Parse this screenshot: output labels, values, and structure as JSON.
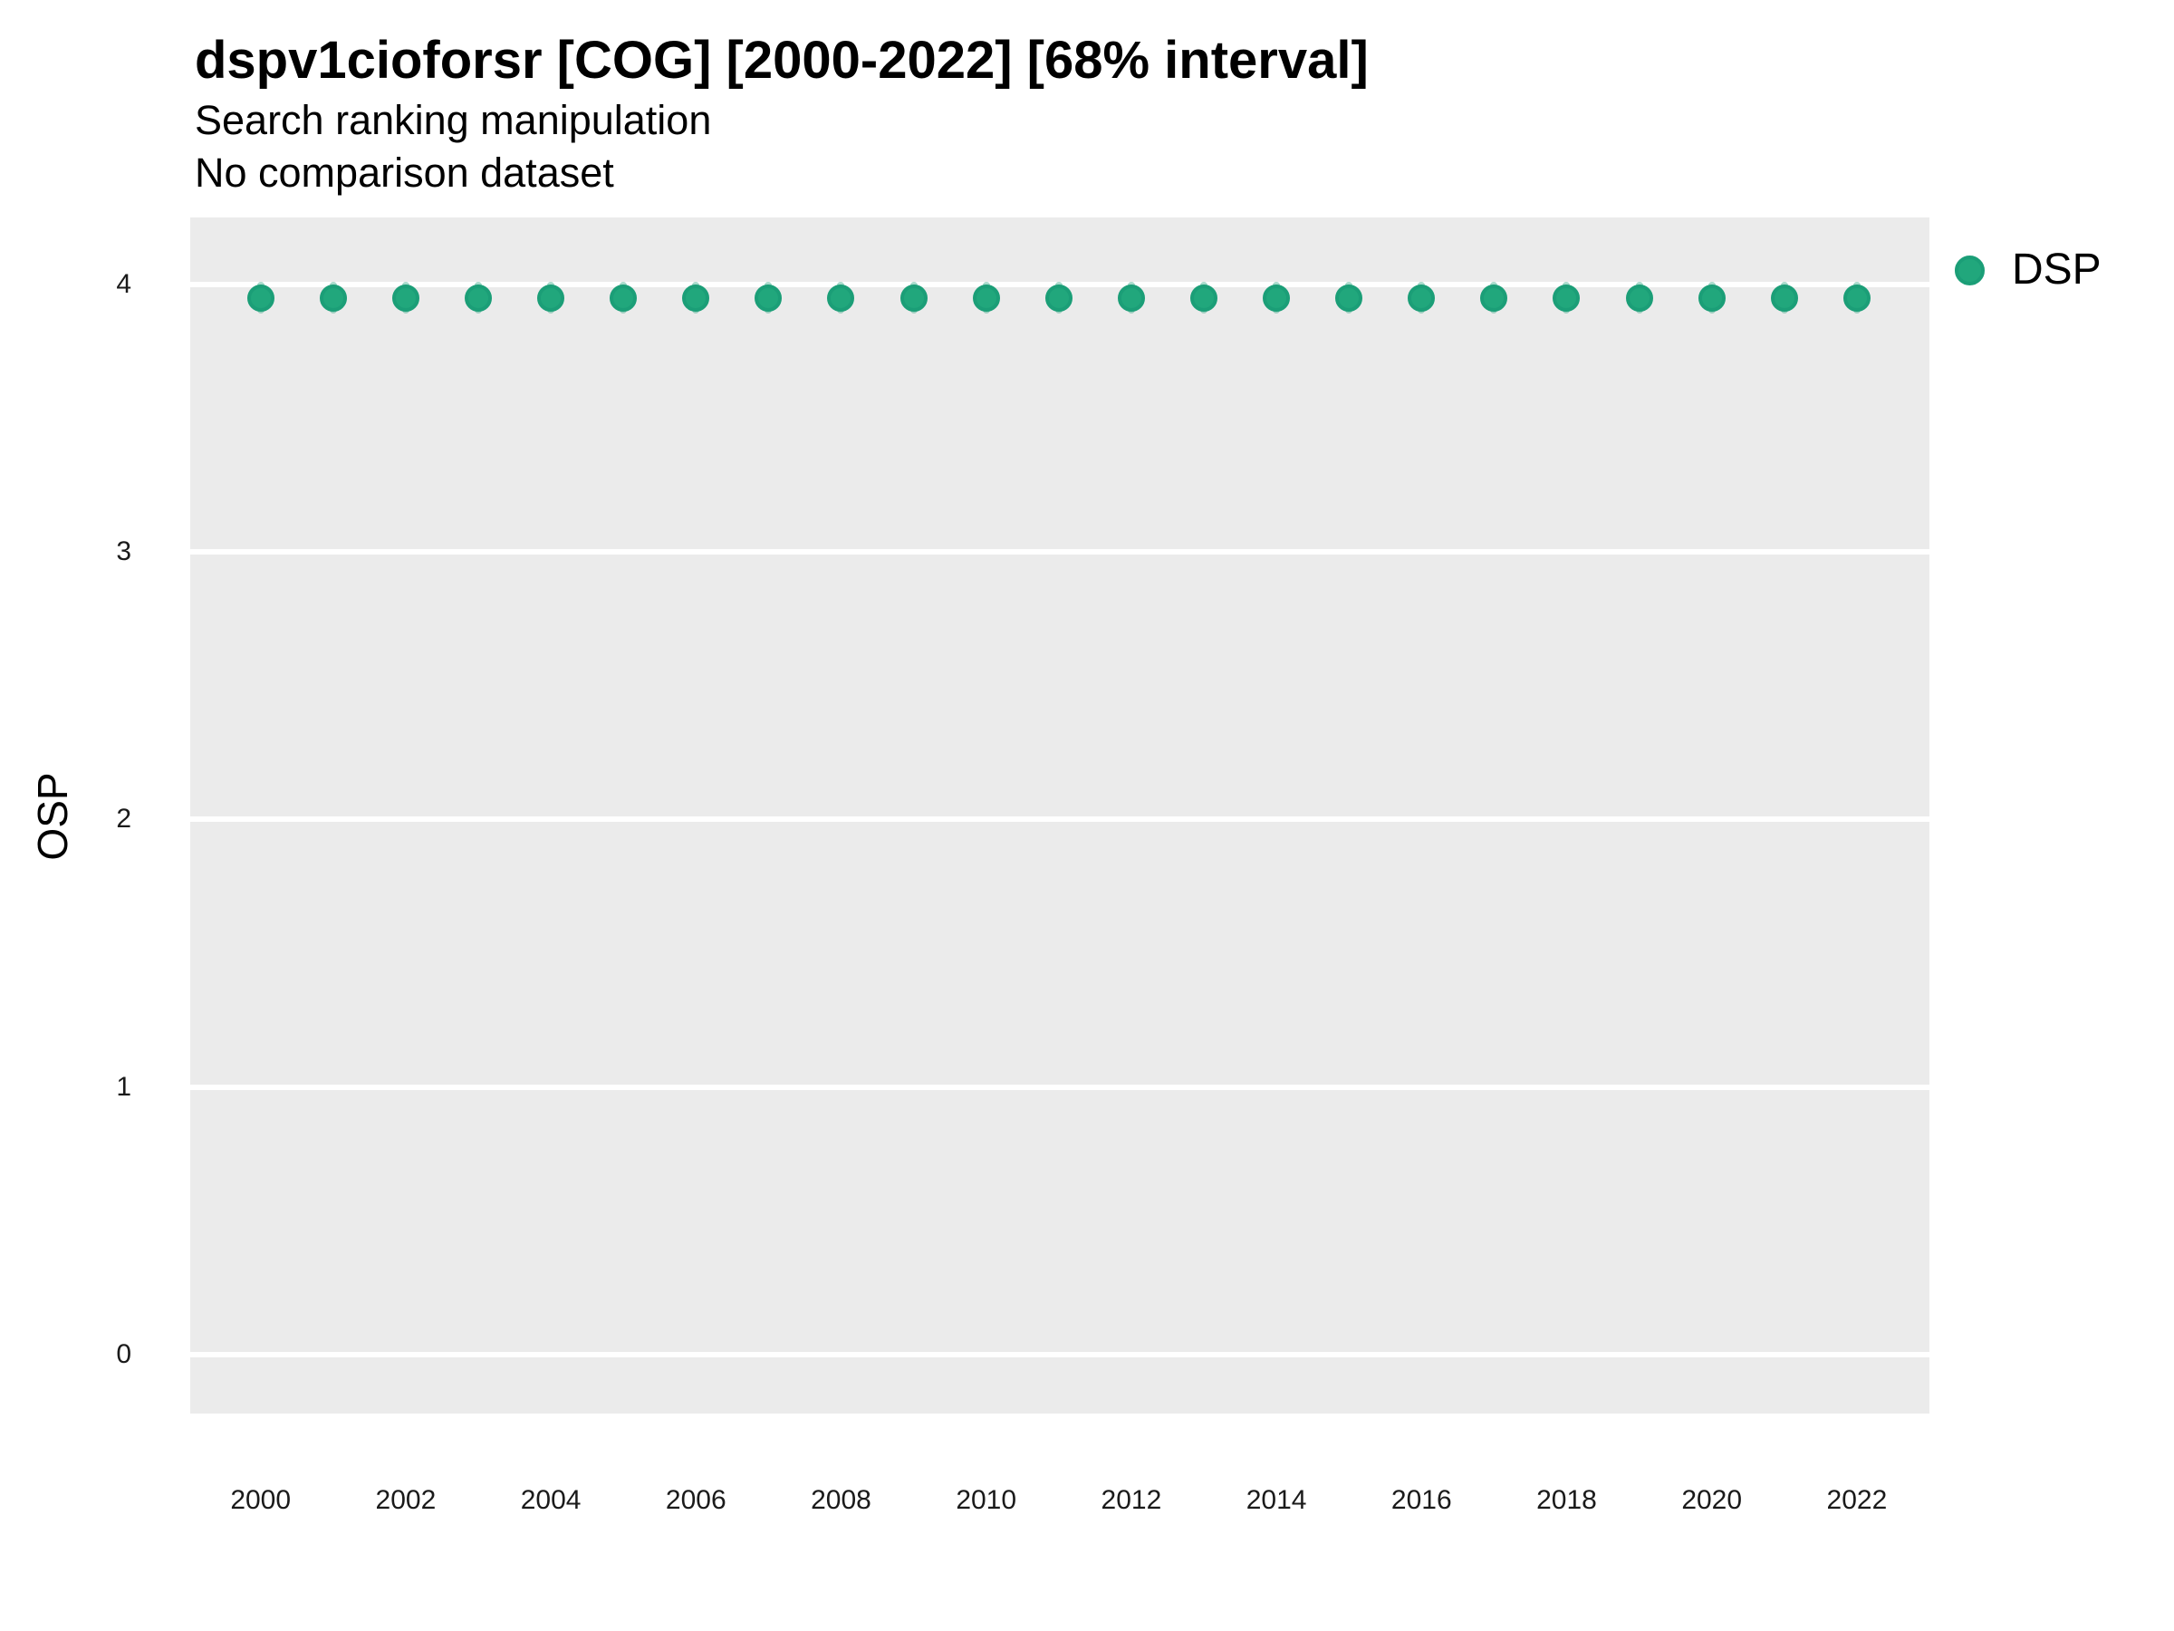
{
  "chart_data": {
    "type": "scatter",
    "title": "dspv1cioforsr [COG] [2000-2022] [68% interval]",
    "subtitle": "Search ranking manipulation",
    "note": "No comparison dataset",
    "xlabel": "",
    "ylabel": "OSP",
    "xlim": [
      1999.03,
      2023.0
    ],
    "ylim": [
      -0.22,
      4.25
    ],
    "x_ticks": [
      2000,
      2002,
      2004,
      2006,
      2008,
      2010,
      2012,
      2014,
      2016,
      2018,
      2020,
      2022
    ],
    "y_ticks": [
      0,
      1,
      2,
      3,
      4
    ],
    "grid": "major-horizontal-only",
    "panel_background": "#EBEBEB",
    "grid_color": "#FFFFFF",
    "legend_position": "right",
    "interval_level": "68%",
    "series": [
      {
        "name": "DSP",
        "color": "#1B9E77",
        "x": [
          2000,
          2001,
          2002,
          2003,
          2004,
          2005,
          2006,
          2007,
          2008,
          2009,
          2010,
          2011,
          2012,
          2013,
          2014,
          2015,
          2016,
          2017,
          2018,
          2019,
          2020,
          2021,
          2022
        ],
        "y": [
          3.95,
          3.95,
          3.95,
          3.95,
          3.95,
          3.95,
          3.95,
          3.95,
          3.95,
          3.95,
          3.95,
          3.95,
          3.95,
          3.95,
          3.95,
          3.95,
          3.95,
          3.95,
          3.95,
          3.95,
          3.95,
          3.95,
          3.95
        ],
        "interval_low": [
          3.89,
          3.89,
          3.89,
          3.89,
          3.89,
          3.89,
          3.89,
          3.89,
          3.89,
          3.89,
          3.89,
          3.89,
          3.89,
          3.89,
          3.89,
          3.89,
          3.89,
          3.89,
          3.89,
          3.89,
          3.89,
          3.89,
          3.89
        ],
        "interval_high": [
          4.01,
          4.01,
          4.01,
          4.01,
          4.01,
          4.01,
          4.01,
          4.01,
          4.01,
          4.01,
          4.01,
          4.01,
          4.01,
          4.01,
          4.01,
          4.01,
          4.01,
          4.01,
          4.01,
          4.01,
          4.01,
          4.01,
          4.01
        ]
      }
    ]
  }
}
